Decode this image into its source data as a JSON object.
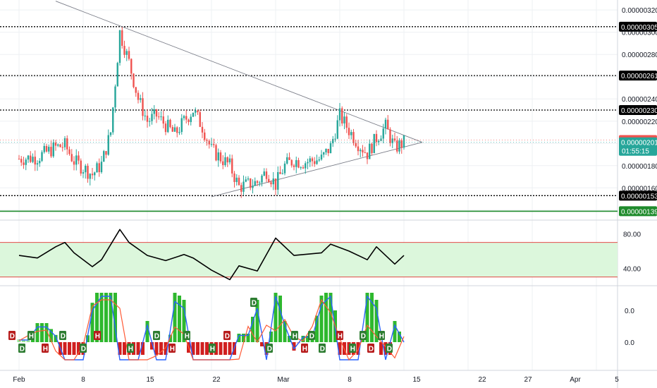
{
  "chart_data": [
    {
      "type": "candlestick",
      "title": "",
      "xlabel": "",
      "ylabel": "",
      "ylim": [
        1.31e-06,
        3.29e-06
      ],
      "grid": true,
      "x_axis_labels": [
        "Feb",
        "8",
        "15",
        "22",
        "Mar",
        "8",
        "15",
        "22",
        "27",
        "Apr",
        "5"
      ],
      "y_axis_labels": [
        "0.00000320",
        "0.00000300",
        "0.00000280",
        "0.00000240",
        "0.00000220",
        "0.00000180",
        "0.00000160"
      ],
      "approx_close_path": [
        {
          "date": "Feb 1",
          "close": 1.862e-06
        },
        {
          "date": "Feb 3",
          "close": 1.875e-06
        },
        {
          "date": "Feb 5",
          "close": 1.965e-06
        },
        {
          "date": "Feb 6",
          "close": 1.982e-06
        },
        {
          "date": "Feb 7",
          "close": 1.841e-06
        },
        {
          "date": "Feb 9",
          "close": 1.72e-06
        },
        {
          "date": "Feb 10",
          "close": 1.813e-06
        },
        {
          "date": "Feb 11",
          "close": 2.1e-06
        },
        {
          "date": "Feb 12",
          "close": 3e-06
        },
        {
          "date": "Feb 13",
          "close": 2.73e-06
        },
        {
          "date": "Feb 14",
          "close": 2.4e-06
        },
        {
          "date": "Feb 15",
          "close": 2.2e-06
        },
        {
          "date": "Feb 16",
          "close": 2.25e-06
        },
        {
          "date": "Feb 18",
          "close": 2.08e-06
        },
        {
          "date": "Feb 19",
          "close": 2.2e-06
        },
        {
          "date": "Feb 20",
          "close": 2.3e-06
        },
        {
          "date": "Feb 21",
          "close": 2.15e-06
        },
        {
          "date": "Feb 22",
          "close": 1.94e-06
        },
        {
          "date": "Feb 24",
          "close": 1.8e-06
        },
        {
          "date": "Feb 25",
          "close": 1.61e-06
        },
        {
          "date": "Feb 27",
          "close": 1.65e-06
        },
        {
          "date": "Feb 28",
          "close": 1.75e-06
        },
        {
          "date": "Mar 1",
          "close": 1.63e-06
        },
        {
          "date": "Mar 2",
          "close": 1.8e-06
        },
        {
          "date": "Mar 3",
          "close": 1.85e-06
        },
        {
          "date": "Mar 4",
          "close": 1.83e-06
        },
        {
          "date": "Mar 6",
          "close": 1.86e-06
        },
        {
          "date": "Mar 7",
          "close": 1.97e-06
        },
        {
          "date": "Mar 8",
          "close": 2.25e-06
        },
        {
          "date": "Mar 9",
          "close": 2.12e-06
        },
        {
          "date": "Mar 10",
          "close": 2e-06
        },
        {
          "date": "Mar 11",
          "close": 1.91e-06
        },
        {
          "date": "Mar 12",
          "close": 2.05e-06
        },
        {
          "date": "Mar 13",
          "close": 2.15e-06
        },
        {
          "date": "Mar 14",
          "close": 1.96e-06
        },
        {
          "date": "Mar 15",
          "close": 2.01e-06
        }
      ],
      "horizontal_levels": [
        {
          "value": 3.05e-06,
          "label": "0.00000305",
          "color": "#000000",
          "style": "dotted"
        },
        {
          "value": 2.61e-06,
          "label": "0.00000261",
          "color": "#000000",
          "style": "dotted"
        },
        {
          "value": 2.3e-06,
          "label": "0.00000230",
          "color": "#000000",
          "style": "dotted"
        },
        {
          "value": 1.53e-06,
          "label": "0.00000153",
          "color": "#000000",
          "style": "dotted"
        },
        {
          "value": 1.39e-06,
          "label": "0.00000139",
          "color": "#1f8b2c",
          "style": "solid"
        }
      ],
      "price_tags": [
        {
          "value": 2.03e-06,
          "label": "0.00000203",
          "color": "#ef5350"
        },
        {
          "value": 2.01e-06,
          "label": "0.00000201",
          "sublabel": "01:55:15",
          "color": "#26a69a"
        }
      ],
      "triangle_pattern": {
        "upper_trendline": {
          "from": {
            "date": "Feb 5",
            "value": 3.28e-06
          },
          "to": {
            "date": "Mar 17",
            "value": 2.01e-06
          }
        },
        "lower_trendline": {
          "from": {
            "date": "Feb 22",
            "value": 1.52e-06
          },
          "to": {
            "date": "Mar 17",
            "value": 2.01e-06
          }
        }
      },
      "colors": {
        "up": "#26a69a",
        "down": "#ef5350"
      }
    },
    {
      "type": "line",
      "name": "RSI",
      "ylim": [
        20,
        95
      ],
      "y_axis_labels": [
        "80.00",
        "40.00"
      ],
      "band": [
        30,
        70
      ],
      "approx_values": [
        {
          "date": "Feb 1",
          "value": 55
        },
        {
          "date": "Feb 3",
          "value": 52
        },
        {
          "date": "Feb 5",
          "value": 65
        },
        {
          "date": "Feb 6",
          "value": 70
        },
        {
          "date": "Feb 7",
          "value": 58
        },
        {
          "date": "Feb 9",
          "value": 42
        },
        {
          "date": "Feb 10",
          "value": 50
        },
        {
          "date": "Feb 12",
          "value": 85
        },
        {
          "date": "Feb 13",
          "value": 70
        },
        {
          "date": "Feb 15",
          "value": 55
        },
        {
          "date": "Feb 17",
          "value": 49
        },
        {
          "date": "Feb 19",
          "value": 56
        },
        {
          "date": "Feb 20",
          "value": 52
        },
        {
          "date": "Feb 22",
          "value": 38
        },
        {
          "date": "Feb 24",
          "value": 27
        },
        {
          "date": "Feb 25",
          "value": 43
        },
        {
          "date": "Feb 27",
          "value": 37
        },
        {
          "date": "Mar 1",
          "value": 75
        },
        {
          "date": "Mar 3",
          "value": 55
        },
        {
          "date": "Mar 6",
          "value": 58
        },
        {
          "date": "Mar 7",
          "value": 68
        },
        {
          "date": "Mar 9",
          "value": 60
        },
        {
          "date": "Mar 11",
          "value": 50
        },
        {
          "date": "Mar 12",
          "value": 65
        },
        {
          "date": "Mar 14",
          "value": 45
        },
        {
          "date": "Mar 15",
          "value": 55
        }
      ],
      "markers": [
        "D"
      ]
    },
    {
      "type": "histogram",
      "name": "MACD",
      "y_axis_labels": [
        "0.0",
        "0.0"
      ],
      "markers": [
        "D",
        "D",
        "H",
        "H",
        "D",
        "D",
        "H",
        "H",
        "D",
        "H",
        "H",
        "H",
        "D",
        "D",
        "H",
        "H",
        "D",
        "D",
        "H",
        "H",
        "D",
        "D",
        "H",
        "D"
      ]
    }
  ]
}
